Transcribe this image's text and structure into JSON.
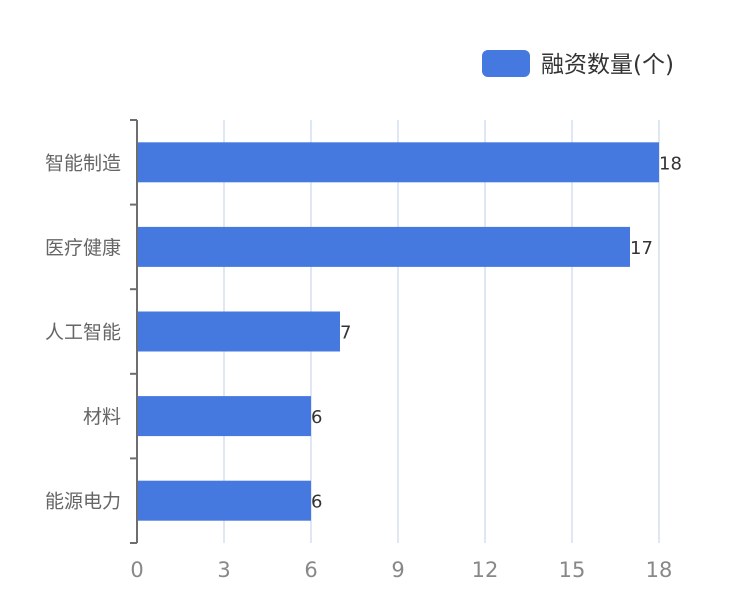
{
  "chart_data": {
    "type": "bar",
    "orientation": "horizontal",
    "categories": [
      "智能制造",
      "医疗健康",
      "人工智能",
      "材料",
      "能源电力"
    ],
    "series": [
      {
        "name": "融资数量(个)",
        "values": [
          18,
          17,
          7,
          6,
          6
        ],
        "color": "#4679e0"
      }
    ],
    "xticks": [
      "0",
      "3",
      "6",
      "9",
      "12",
      "15",
      "18"
    ],
    "xlim": [
      0,
      18
    ],
    "grid": true,
    "legend": "top-right",
    "title": "",
    "xlabel": "",
    "ylabel": ""
  },
  "colors": {
    "bar": "#4679e0",
    "grid": "#d6dff0",
    "axis": "#6e6e6e",
    "category_text": "#666666",
    "tick_text": "#888888",
    "value_text": "#333333",
    "legend_text": "#333333"
  }
}
